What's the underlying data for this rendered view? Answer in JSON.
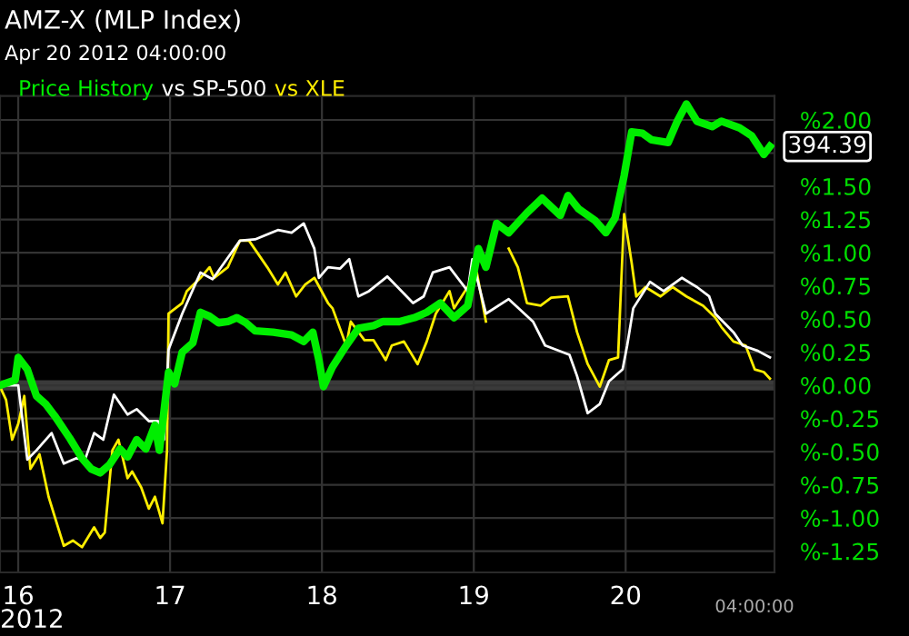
{
  "chart_data": {
    "type": "line",
    "title": "AMZ-X (MLP Index)",
    "subtitle": "Apr 20 2012 04:00:00",
    "annotations": [
      "2012",
      "04:00:00",
      {
        "text": "394.39",
        "x": 20.95,
        "y": 1.8
      }
    ],
    "xlim": [
      15.88,
      20.98
    ],
    "xticks": [
      16,
      17,
      18,
      19,
      20
    ],
    "ylim": [
      -1.41,
      2.18
    ],
    "yticks": [
      {
        "value": -1.25,
        "label": "%-1.25"
      },
      {
        "value": -1.0,
        "label": "%-1.00"
      },
      {
        "value": -0.75,
        "label": "%-0.75"
      },
      {
        "value": -0.5,
        "label": "%-0.50"
      },
      {
        "value": -0.25,
        "label": "%-0.25"
      },
      {
        "value": 0,
        "label": "%0.00"
      },
      {
        "value": 0.25,
        "label": "%0.25"
      },
      {
        "value": 0.5,
        "label": "%0.50"
      },
      {
        "value": 0.75,
        "label": "%0.75"
      },
      {
        "value": 1.0,
        "label": "%1.00"
      },
      {
        "value": 1.25,
        "label": "%1.25"
      },
      {
        "value": 1.5,
        "label": "%1.50"
      },
      {
        "value": 1.75,
        "label": null
      },
      {
        "value": 2.0,
        "label": "%2.00"
      }
    ],
    "grid": true,
    "legend": "top left",
    "marker": "none",
    "line_style": "solid",
    "ref_lines": [
      {
        "axis": "y",
        "value": 0,
        "label": null,
        "color": "#3a3a3a"
      }
    ],
    "series": [
      {
        "name": "Price History",
        "color": "#00ee00",
        "x": [
          15.88,
          15.98,
          16.0,
          16.06,
          16.12,
          16.18,
          16.24,
          16.34,
          16.42,
          16.48,
          16.54,
          16.6,
          16.67,
          16.72,
          16.78,
          16.84,
          16.9,
          16.93,
          16.99,
          17.03,
          17.08,
          17.15,
          17.2,
          17.26,
          17.32,
          17.38,
          17.44,
          17.5,
          17.56,
          17.68,
          17.8,
          17.88,
          17.94,
          17.98,
          18.01,
          18.07,
          18.16,
          18.24,
          18.34,
          18.4,
          18.51,
          18.61,
          18.69,
          18.78,
          18.87,
          18.96,
          19.03,
          19.08,
          19.15,
          19.23,
          19.35,
          19.45,
          19.57,
          19.62,
          19.69,
          19.8,
          19.87,
          19.93,
          19.99,
          20.04,
          20.11,
          20.17,
          20.28,
          20.34,
          20.4,
          20.47,
          20.57,
          20.63,
          20.75,
          20.83,
          20.91,
          20.95
        ],
        "values": [
          0.0,
          0.04,
          0.21,
          0.12,
          -0.08,
          -0.14,
          -0.23,
          -0.4,
          -0.55,
          -0.63,
          -0.66,
          -0.6,
          -0.48,
          -0.54,
          -0.41,
          -0.48,
          -0.3,
          -0.49,
          0.1,
          0.01,
          0.25,
          0.32,
          0.55,
          0.52,
          0.47,
          0.48,
          0.51,
          0.47,
          0.41,
          0.4,
          0.38,
          0.33,
          0.4,
          0.19,
          -0.01,
          0.14,
          0.3,
          0.43,
          0.45,
          0.48,
          0.48,
          0.51,
          0.55,
          0.62,
          0.51,
          0.6,
          1.03,
          0.89,
          1.22,
          1.15,
          1.3,
          1.41,
          1.28,
          1.43,
          1.33,
          1.24,
          1.15,
          1.26,
          1.58,
          1.91,
          1.9,
          1.85,
          1.83,
          1.99,
          2.12,
          1.99,
          1.95,
          1.99,
          1.94,
          1.88,
          1.74,
          1.8
        ]
      },
      {
        "name": "vs SP-500",
        "color": "#ffffff",
        "x": [
          15.88,
          16.0,
          16.06,
          16.12,
          16.22,
          16.3,
          16.38,
          16.44,
          16.5,
          16.56,
          16.63,
          16.72,
          16.78,
          16.86,
          16.92,
          16.96,
          16.99,
          17.08,
          17.2,
          17.28,
          17.46,
          17.56,
          17.71,
          17.8,
          17.88,
          17.95,
          17.98,
          18.04,
          18.12,
          18.18,
          18.24,
          18.31,
          18.43,
          18.6,
          18.67,
          18.73,
          18.84,
          18.96,
          18.99,
          19.08,
          19.23,
          19.39,
          19.47,
          19.63,
          19.68,
          19.75,
          19.83,
          19.89,
          19.98,
          20.01,
          20.05,
          20.16,
          20.25,
          20.37,
          20.47,
          20.55,
          20.59,
          20.71,
          20.77,
          20.87,
          20.95
        ],
        "values": [
          0.0,
          0.0,
          -0.56,
          -0.49,
          -0.36,
          -0.59,
          -0.55,
          -0.56,
          -0.36,
          -0.41,
          -0.07,
          -0.22,
          -0.18,
          -0.27,
          -0.27,
          -0.41,
          0.27,
          0.54,
          0.85,
          0.8,
          1.09,
          1.1,
          1.17,
          1.15,
          1.22,
          1.03,
          0.81,
          0.89,
          0.88,
          0.95,
          0.67,
          0.71,
          0.82,
          0.62,
          0.67,
          0.85,
          0.89,
          0.71,
          0.95,
          0.54,
          0.65,
          0.48,
          0.3,
          0.23,
          0.07,
          -0.21,
          -0.14,
          0.03,
          0.12,
          0.3,
          0.58,
          0.78,
          0.71,
          0.81,
          0.74,
          0.67,
          0.54,
          0.4,
          0.3,
          0.26,
          0.21
        ]
      },
      {
        "name": "vs XLE",
        "color": "#ffee00",
        "x": [
          15.88,
          15.92,
          15.96,
          16.0,
          16.04,
          16.08,
          16.14,
          16.2,
          16.3,
          16.36,
          16.42,
          16.5,
          16.54,
          16.57,
          16.62,
          16.66,
          16.72,
          16.75,
          16.81,
          16.86,
          16.9,
          16.95,
          16.98,
          16.99,
          17.08,
          17.11,
          17.2,
          17.26,
          17.29,
          17.38,
          17.46,
          17.52,
          17.64,
          17.71,
          17.76,
          17.83,
          17.89,
          17.95,
          18.04,
          18.07,
          18.16,
          18.19,
          18.28,
          18.34,
          18.42,
          18.46,
          18.54,
          18.63,
          18.69,
          18.75,
          18.84,
          18.87,
          19.02,
          19.08,
          19.15,
          19.23,
          19.29,
          19.35,
          19.44,
          19.51,
          19.62,
          19.68,
          19.75,
          19.83,
          19.89,
          19.95,
          19.99,
          20.04,
          20.07,
          20.13,
          20.23,
          20.31,
          20.4,
          20.51,
          20.59,
          20.63,
          20.71,
          20.79,
          20.85,
          20.91,
          20.95
        ],
        "values": [
          -0.01,
          -0.11,
          -0.41,
          -0.29,
          -0.08,
          -0.63,
          -0.52,
          -0.84,
          -1.21,
          -1.17,
          -1.22,
          -1.07,
          -1.15,
          -1.11,
          -0.49,
          -0.41,
          -0.7,
          -0.65,
          -0.77,
          -0.93,
          -0.84,
          -1.04,
          -0.49,
          0.54,
          0.62,
          0.71,
          0.81,
          0.89,
          0.81,
          0.89,
          1.09,
          1.09,
          0.89,
          0.76,
          0.85,
          0.67,
          0.76,
          0.81,
          0.62,
          0.58,
          0.3,
          0.48,
          0.34,
          0.34,
          0.19,
          0.3,
          0.33,
          0.16,
          0.33,
          0.54,
          0.71,
          0.58,
          0.85,
          0.48,
          null,
          1.03,
          0.89,
          0.62,
          0.6,
          0.66,
          0.67,
          0.4,
          0.16,
          -0.01,
          0.19,
          0.21,
          1.29,
          0.92,
          0.67,
          0.74,
          0.67,
          0.74,
          0.67,
          0.6,
          0.51,
          0.44,
          0.33,
          0.3,
          0.12,
          0.1,
          0.05
        ]
      }
    ]
  }
}
